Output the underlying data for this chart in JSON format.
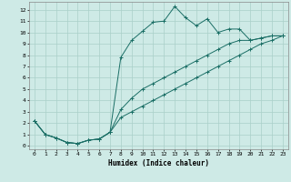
{
  "xlabel": "Humidex (Indice chaleur)",
  "background_color": "#ceeae6",
  "grid_color": "#aacfc9",
  "line_color": "#1a6e65",
  "xlim": [
    -0.5,
    23.5
  ],
  "ylim": [
    -0.3,
    12.7
  ],
  "xticks": [
    0,
    1,
    2,
    3,
    4,
    5,
    6,
    7,
    8,
    9,
    10,
    11,
    12,
    13,
    14,
    15,
    16,
    17,
    18,
    19,
    20,
    21,
    22,
    23
  ],
  "yticks": [
    0,
    1,
    2,
    3,
    4,
    5,
    6,
    7,
    8,
    9,
    10,
    11,
    12
  ],
  "series": [
    [
      2.2,
      1.0,
      0.7,
      0.3,
      0.2,
      0.5,
      0.6,
      1.2,
      7.8,
      9.3,
      10.1,
      10.9,
      11.0,
      12.3,
      11.3,
      10.6,
      11.2,
      10.0,
      10.3,
      10.3,
      9.3,
      9.5,
      9.7,
      9.7
    ],
    [
      2.2,
      1.0,
      0.7,
      0.3,
      0.2,
      0.5,
      0.6,
      1.2,
      3.2,
      4.2,
      5.0,
      5.5,
      6.0,
      6.5,
      7.0,
      7.5,
      8.0,
      8.5,
      9.0,
      9.3,
      9.3,
      9.5,
      9.7,
      9.7
    ],
    [
      2.2,
      1.0,
      0.7,
      0.3,
      0.2,
      0.5,
      0.6,
      1.2,
      2.5,
      3.0,
      3.5,
      4.0,
      4.5,
      5.0,
      5.5,
      6.0,
      6.5,
      7.0,
      7.5,
      8.0,
      8.5,
      9.0,
      9.3,
      9.7
    ]
  ]
}
